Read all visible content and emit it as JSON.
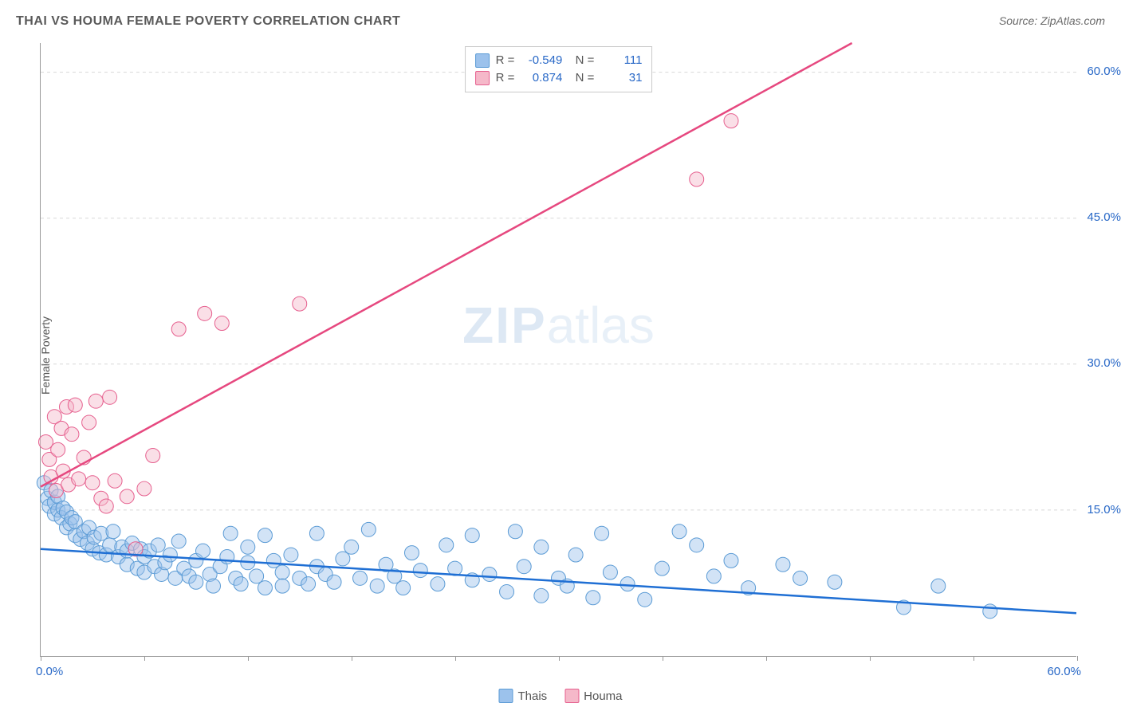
{
  "header": {
    "title": "THAI VS HOUMA FEMALE POVERTY CORRELATION CHART",
    "source": "Source: ZipAtlas.com"
  },
  "chart": {
    "type": "scatter",
    "ylabel": "Female Poverty",
    "xlim": [
      0,
      60
    ],
    "ylim": [
      0,
      63
    ],
    "x_ticks_label": {
      "min": "0.0%",
      "max": "60.0%"
    },
    "y_ticks": [
      15,
      30,
      45,
      60
    ],
    "y_tick_labels": [
      "15.0%",
      "30.0%",
      "45.0%",
      "60.0%"
    ],
    "x_tick_positions": [
      0,
      6,
      12,
      18,
      24,
      30,
      36,
      42,
      48,
      54,
      60
    ],
    "grid_color": "#d8d8d8",
    "background_color": "#ffffff",
    "axis_label_color": "#2868c7",
    "marker_radius": 9,
    "marker_opacity": 0.45,
    "line_width": 2.5,
    "watermark": {
      "bold": "ZIP",
      "rest": "atlas"
    },
    "series": {
      "thais": {
        "label": "Thais",
        "color_fill": "#9cc2ec",
        "color_stroke": "#5b9bd5",
        "line_color": "#1f6fd4",
        "R": "-0.549",
        "N": "111",
        "trend": {
          "x1": 0,
          "y1": 11.0,
          "x2": 60,
          "y2": 4.4
        },
        "points": [
          [
            0.2,
            17.8
          ],
          [
            0.4,
            16.2
          ],
          [
            0.5,
            15.4
          ],
          [
            0.6,
            17.0
          ],
          [
            0.8,
            14.6
          ],
          [
            0.8,
            15.8
          ],
          [
            1.0,
            16.4
          ],
          [
            1.0,
            15.0
          ],
          [
            1.2,
            14.2
          ],
          [
            1.3,
            15.2
          ],
          [
            1.5,
            13.2
          ],
          [
            1.5,
            14.8
          ],
          [
            1.7,
            13.6
          ],
          [
            1.8,
            14.2
          ],
          [
            2.0,
            12.4
          ],
          [
            2.0,
            13.8
          ],
          [
            2.3,
            12.0
          ],
          [
            2.5,
            12.8
          ],
          [
            2.7,
            11.6
          ],
          [
            2.8,
            13.2
          ],
          [
            3.0,
            11.0
          ],
          [
            3.1,
            12.2
          ],
          [
            3.4,
            10.6
          ],
          [
            3.5,
            12.6
          ],
          [
            3.8,
            10.4
          ],
          [
            4.0,
            11.4
          ],
          [
            4.2,
            12.8
          ],
          [
            4.5,
            10.2
          ],
          [
            4.7,
            11.2
          ],
          [
            5.0,
            9.4
          ],
          [
            5.0,
            10.8
          ],
          [
            5.3,
            11.6
          ],
          [
            5.6,
            9.0
          ],
          [
            5.8,
            11.0
          ],
          [
            6.0,
            10.2
          ],
          [
            6.0,
            8.6
          ],
          [
            6.3,
            10.8
          ],
          [
            6.6,
            9.2
          ],
          [
            6.8,
            11.4
          ],
          [
            7.0,
            8.4
          ],
          [
            7.2,
            9.6
          ],
          [
            7.5,
            10.4
          ],
          [
            7.8,
            8.0
          ],
          [
            8.0,
            11.8
          ],
          [
            8.3,
            9.0
          ],
          [
            8.6,
            8.2
          ],
          [
            9.0,
            7.6
          ],
          [
            9.0,
            9.8
          ],
          [
            9.4,
            10.8
          ],
          [
            9.8,
            8.4
          ],
          [
            10.0,
            7.2
          ],
          [
            10.4,
            9.2
          ],
          [
            10.8,
            10.2
          ],
          [
            11.0,
            12.6
          ],
          [
            11.3,
            8.0
          ],
          [
            11.6,
            7.4
          ],
          [
            12.0,
            9.6
          ],
          [
            12.0,
            11.2
          ],
          [
            12.5,
            8.2
          ],
          [
            13.0,
            7.0
          ],
          [
            13.0,
            12.4
          ],
          [
            13.5,
            9.8
          ],
          [
            14.0,
            8.6
          ],
          [
            14.0,
            7.2
          ],
          [
            14.5,
            10.4
          ],
          [
            15.0,
            8.0
          ],
          [
            15.5,
            7.4
          ],
          [
            16.0,
            9.2
          ],
          [
            16.0,
            12.6
          ],
          [
            16.5,
            8.4
          ],
          [
            17.0,
            7.6
          ],
          [
            17.5,
            10.0
          ],
          [
            18.0,
            11.2
          ],
          [
            18.5,
            8.0
          ],
          [
            19.0,
            13.0
          ],
          [
            19.5,
            7.2
          ],
          [
            20.0,
            9.4
          ],
          [
            20.5,
            8.2
          ],
          [
            21.0,
            7.0
          ],
          [
            21.5,
            10.6
          ],
          [
            22.0,
            8.8
          ],
          [
            23.0,
            7.4
          ],
          [
            23.5,
            11.4
          ],
          [
            24.0,
            9.0
          ],
          [
            25.0,
            7.8
          ],
          [
            25.0,
            12.4
          ],
          [
            26.0,
            8.4
          ],
          [
            27.0,
            6.6
          ],
          [
            27.5,
            12.8
          ],
          [
            28.0,
            9.2
          ],
          [
            29.0,
            11.2
          ],
          [
            29.0,
            6.2
          ],
          [
            30.0,
            8.0
          ],
          [
            30.5,
            7.2
          ],
          [
            31.0,
            10.4
          ],
          [
            32.0,
            6.0
          ],
          [
            32.5,
            12.6
          ],
          [
            33.0,
            8.6
          ],
          [
            34.0,
            7.4
          ],
          [
            35.0,
            5.8
          ],
          [
            36.0,
            9.0
          ],
          [
            37.0,
            12.8
          ],
          [
            38.0,
            11.4
          ],
          [
            39.0,
            8.2
          ],
          [
            40.0,
            9.8
          ],
          [
            41.0,
            7.0
          ],
          [
            43.0,
            9.4
          ],
          [
            44.0,
            8.0
          ],
          [
            46.0,
            7.6
          ],
          [
            50.0,
            5.0
          ],
          [
            52.0,
            7.2
          ],
          [
            55.0,
            4.6
          ]
        ]
      },
      "houma": {
        "label": "Houma",
        "color_fill": "#f5b8c9",
        "color_stroke": "#e65f8e",
        "line_color": "#e6487f",
        "R": "0.874",
        "N": "31",
        "trend": {
          "x1": 0,
          "y1": 17.4,
          "x2": 47,
          "y2": 63
        },
        "points": [
          [
            0.3,
            22.0
          ],
          [
            0.5,
            20.2
          ],
          [
            0.6,
            18.4
          ],
          [
            0.8,
            24.6
          ],
          [
            0.9,
            17.0
          ],
          [
            1.0,
            21.2
          ],
          [
            1.2,
            23.4
          ],
          [
            1.3,
            19.0
          ],
          [
            1.5,
            25.6
          ],
          [
            1.6,
            17.6
          ],
          [
            1.8,
            22.8
          ],
          [
            2.0,
            25.8
          ],
          [
            2.2,
            18.2
          ],
          [
            2.5,
            20.4
          ],
          [
            2.8,
            24.0
          ],
          [
            3.0,
            17.8
          ],
          [
            3.2,
            26.2
          ],
          [
            3.5,
            16.2
          ],
          [
            3.8,
            15.4
          ],
          [
            4.0,
            26.6
          ],
          [
            4.3,
            18.0
          ],
          [
            5.0,
            16.4
          ],
          [
            5.5,
            11.0
          ],
          [
            6.0,
            17.2
          ],
          [
            6.5,
            20.6
          ],
          [
            8.0,
            33.6
          ],
          [
            9.5,
            35.2
          ],
          [
            10.5,
            34.2
          ],
          [
            15.0,
            36.2
          ],
          [
            38.0,
            49.0
          ],
          [
            40.0,
            55.0
          ]
        ]
      }
    }
  },
  "legend_bottom": [
    {
      "key": "thais",
      "label": "Thais"
    },
    {
      "key": "houma",
      "label": "Houma"
    }
  ]
}
